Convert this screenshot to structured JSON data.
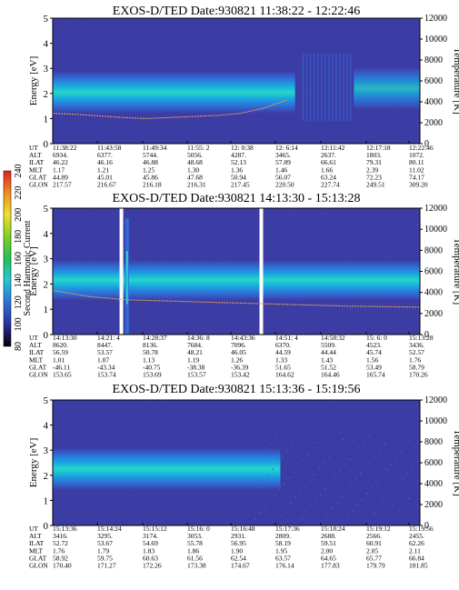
{
  "colors": {
    "background": "#3c3ca5",
    "band_outer": "#2f6fd8",
    "band_mid": "#18a8e0",
    "band_core": "#25d6c9",
    "temperature_trace": "#e0a060",
    "data_gap": "#ffffff"
  },
  "colorbar": {
    "label": "Second Harmonic Current",
    "ticks": [
      "80",
      "100",
      "120",
      "140",
      "160",
      "180",
      "200",
      "220",
      "240"
    ]
  },
  "chart_data": [
    {
      "type": "heatmap",
      "title": "EXOS-D/TED   Date:930821   11:38:22 - 12:22:46",
      "ylabel": "Energy [eV]",
      "y2label": "Temperature [K]",
      "ylim": [
        0,
        5
      ],
      "y2lim": [
        0,
        12000
      ],
      "yticks": [
        "0",
        "1",
        "2",
        "3",
        "4",
        "5"
      ],
      "y2ticks": [
        "0",
        "2000",
        "4000",
        "6000",
        "8000",
        "10000",
        "12000"
      ],
      "band": {
        "center_eV": 2.05,
        "width_eV": 0.85,
        "extent": [
          0,
          0.66
        ],
        "right_extent": [
          0.82,
          1.0
        ],
        "right_center_eV": 2.2
      },
      "temperature_curve_K": [
        2900,
        2800,
        2650,
        2500,
        2400,
        2500,
        2600,
        2700,
        2900,
        3400,
        4200
      ],
      "gaps": [],
      "table": {
        "labels": [
          "UT",
          "ALT",
          "ILAT",
          "MLT",
          "GLAT",
          "GLON"
        ],
        "columns": [
          [
            "11:38:22",
            "6934.",
            "46.22",
            "1.17",
            "44.89",
            "217.57"
          ],
          [
            "11:43:58",
            "6377.",
            "46.16",
            "1.21",
            "45.01",
            "216.67"
          ],
          [
            "11:49:34",
            "5744.",
            "46.88",
            "1.25",
            "45.86",
            "216.18"
          ],
          [
            "11:55: 2",
            "5056.",
            "48.68",
            "1.30",
            "47.68",
            "216.31"
          ],
          [
            "12: 0:38",
            "4287.",
            "52.13",
            "1.36",
            "50.94",
            "217.45"
          ],
          [
            "12: 6:14",
            "3465.",
            "57.89",
            "1.46",
            "56.07",
            "220.50"
          ],
          [
            "12:11:42",
            "2637.",
            "66.61",
            "1.66",
            "63.24",
            "227.74"
          ],
          [
            "12:17:18",
            "1803.",
            "79.31",
            "2.39",
            "72.23",
            "249.51"
          ],
          [
            "12:22:46",
            "1072.",
            "80.11",
            "11.02",
            "74.17",
            "309.20"
          ]
        ]
      }
    },
    {
      "type": "heatmap",
      "title": "EXOS-D/TED   Date:930821   14:13:30 - 15:13:28",
      "ylabel": "Energy [eV]",
      "y2label": "Temperature [K]",
      "ylim": [
        0,
        5
      ],
      "y2lim": [
        0,
        12000
      ],
      "yticks": [
        "0",
        "1",
        "2",
        "3",
        "4",
        "5"
      ],
      "y2ticks": [
        "0",
        "2000",
        "4000",
        "6000",
        "8000",
        "10000",
        "12000"
      ],
      "band": {
        "center_eV": 2.15,
        "width_eV": 0.8,
        "extent": [
          0,
          1.0
        ]
      },
      "temperature_curve_K": [
        4200,
        3600,
        3300,
        3200,
        3100,
        3000,
        2900,
        2800,
        2700,
        2650,
        2600
      ],
      "gaps": [
        0.187,
        0.568
      ],
      "table": {
        "labels": [
          "UT",
          "ALT",
          "ILAT",
          "MLT",
          "GLAT",
          "GLON"
        ],
        "columns": [
          [
            "14:13:30",
            "8620.",
            "56.59",
            "1.01",
            "-46.11",
            "153.65"
          ],
          [
            "14:21: 4",
            "8447.",
            "53.57",
            "1.07",
            "-43.34",
            "153.74"
          ],
          [
            "14:28:37",
            "8136.",
            "50.78",
            "1.13",
            "-40.75",
            "153.69"
          ],
          [
            "14:36: 8",
            "7684.",
            "48.21",
            "1.19",
            "-38.38",
            "153.57"
          ],
          [
            "14:43:36",
            "7096.",
            "46.05",
            "1.26",
            "-36.39",
            "153.42"
          ],
          [
            "14:51: 4",
            "6370.",
            "44.59",
            "1.33",
            "51.65",
            "164.62"
          ],
          [
            "14:58:32",
            "5509.",
            "44.44",
            "1.43",
            "51.52",
            "164.46"
          ],
          [
            "15: 6: 0",
            "4523.",
            "45.74",
            "1.56",
            "53.49",
            "165.74"
          ],
          [
            "15:13:28",
            "3436.",
            "52.57",
            "1.76",
            "58.79",
            "170.26"
          ]
        ]
      }
    },
    {
      "type": "heatmap",
      "title": "EXOS-D/TED   Date:930821   15:13:36 - 15:19:56",
      "ylabel": "Energy [eV]",
      "y2label": "Temperature [K]",
      "ylim": [
        0,
        5
      ],
      "y2lim": [
        0,
        12000
      ],
      "yticks": [
        "0",
        "1",
        "2",
        "3",
        "4",
        "5"
      ],
      "y2ticks": [
        "0",
        "2000",
        "4000",
        "6000",
        "8000",
        "10000",
        "12000"
      ],
      "band": {
        "center_eV": 2.25,
        "width_eV": 0.85,
        "extent": [
          0,
          0.62
        ]
      },
      "temperature_curve_K": [],
      "gaps": [],
      "table": {
        "labels": [
          "UT",
          "ALT",
          "ILAT",
          "MLT",
          "GLAT",
          "GLON"
        ],
        "columns": [
          [
            "15:13:36",
            "3416.",
            "52.72",
            "1.76",
            "58.92",
            "170.40"
          ],
          [
            "15:14:24",
            "3295.",
            "53.67",
            "1.79",
            "59.75",
            "171.27"
          ],
          [
            "15:15:12",
            "3174.",
            "54.69",
            "1.83",
            "60.63",
            "172.26"
          ],
          [
            "15:16: 0",
            "3053.",
            "55.78",
            "1.86",
            "61.56",
            "173.38"
          ],
          [
            "15:16:48",
            "2931.",
            "56.95",
            "1.90",
            "62.54",
            "174.67"
          ],
          [
            "15:17:36",
            "2809.",
            "58.19",
            "1.95",
            "63.57",
            "176.14"
          ],
          [
            "15:18:24",
            "2688.",
            "59.51",
            "2.00",
            "64.65",
            "177.83"
          ],
          [
            "15:19:12",
            "2566.",
            "60.91",
            "2.05",
            "65.77",
            "179.79"
          ],
          [
            "15:19:56",
            "2455.",
            "62.26",
            "2.11",
            "66.84",
            "181.85"
          ]
        ]
      }
    }
  ]
}
